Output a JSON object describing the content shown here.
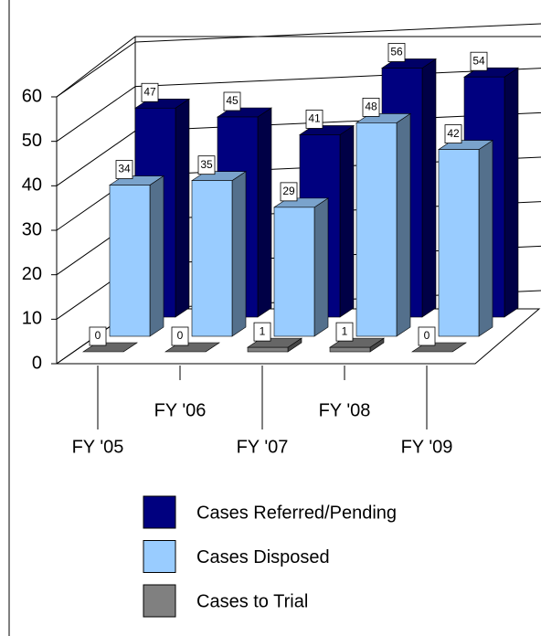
{
  "chart_data": {
    "type": "bar3d",
    "categories": [
      "FY '05",
      "FY '06",
      "FY '07",
      "FY '08",
      "FY '09"
    ],
    "series": [
      {
        "name": "Cases Referred/Pending",
        "color": "#00007f",
        "values": [
          47,
          45,
          41,
          56,
          54
        ]
      },
      {
        "name": "Cases Disposed",
        "color": "#99ccff",
        "values": [
          34,
          35,
          29,
          48,
          42
        ]
      },
      {
        "name": "Cases to Trial",
        "color": "#808080",
        "values": [
          0,
          0,
          1,
          1,
          0
        ]
      }
    ],
    "ylim": [
      0,
      60
    ],
    "yticks": [
      0,
      10,
      20,
      30,
      40,
      50,
      60
    ],
    "grid": true
  }
}
